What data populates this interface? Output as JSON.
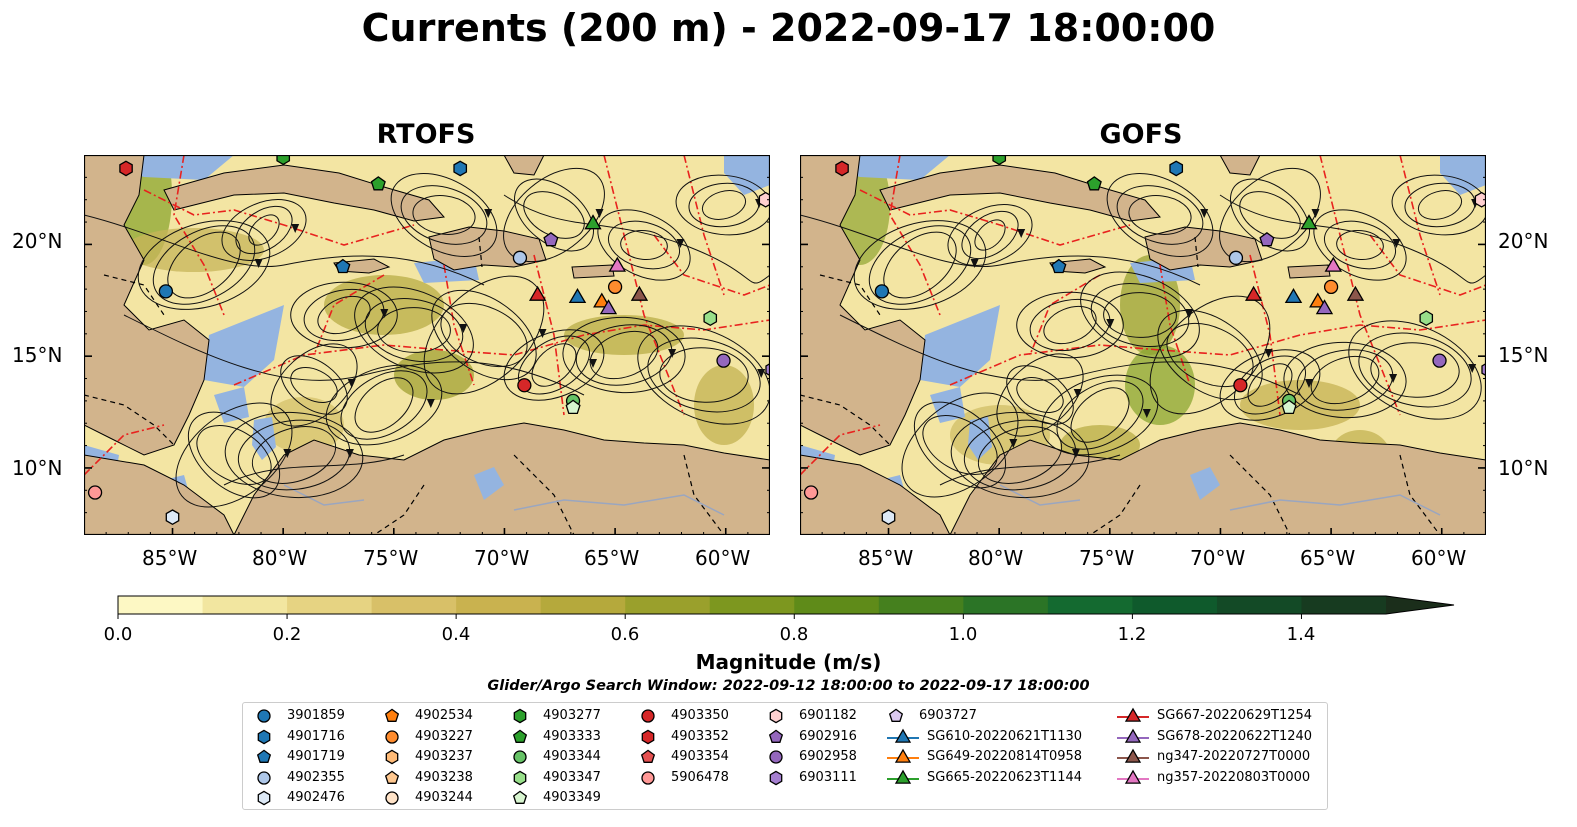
{
  "title": "Currents (200 m) - 2022-09-17 18:00:00",
  "panels": [
    {
      "title": "RTOFS"
    },
    {
      "title": "GOFS"
    }
  ],
  "lon_ticks": [
    "85°W",
    "80°W",
    "75°W",
    "70°W",
    "65°W",
    "60°W"
  ],
  "lat_ticks": [
    "20°N",
    "15°N",
    "10°N"
  ],
  "colorbar": {
    "label": "Magnitude (m/s)",
    "ticks": [
      "0.0",
      "0.2",
      "0.4",
      "0.6",
      "0.8",
      "1.0",
      "1.2",
      "1.4"
    ],
    "vmin": 0.0,
    "vmax": 1.5,
    "colors": [
      "#fdf8c4",
      "#f2e6a0",
      "#e6d382",
      "#d8c068",
      "#c9b24f",
      "#b5a93c",
      "#9aa02c",
      "#7d971f",
      "#5f8b19",
      "#45801e",
      "#2b7426",
      "#146a30",
      "#0f5a2c",
      "#134a26",
      "#173b20",
      "#1b2e1b"
    ]
  },
  "search_window": "Glider/Argo Search Window: 2022-09-12 18:00:00 to 2022-09-17 18:00:00",
  "colors": {
    "land": "#d2b48c",
    "water": "#94b4e0",
    "eez": "#e8221e"
  },
  "legend": [
    [
      {
        "label": "3901859",
        "marker": "circle",
        "color": "#1f77b4"
      },
      {
        "label": "4901716",
        "marker": "hexagon",
        "color": "#1f77b4"
      },
      {
        "label": "4901719",
        "marker": "pentagon",
        "color": "#1f77b4"
      },
      {
        "label": "4902355",
        "marker": "circle",
        "color": "#aec7e8"
      },
      {
        "label": "4902476",
        "marker": "hexagon",
        "color": "#dde9f6"
      }
    ],
    [
      {
        "label": "4902534",
        "marker": "pentagon",
        "color": "#ff7f0e"
      },
      {
        "label": "4903227",
        "marker": "circle",
        "color": "#ff8c2e"
      },
      {
        "label": "4903237",
        "marker": "hexagon",
        "color": "#ffbb78"
      },
      {
        "label": "4903238",
        "marker": "pentagon",
        "color": "#ffc890"
      },
      {
        "label": "4903244",
        "marker": "circle",
        "color": "#ffe3c8"
      }
    ],
    [
      {
        "label": "4903277",
        "marker": "hexagon",
        "color": "#2ca02c"
      },
      {
        "label": "4903333",
        "marker": "pentagon",
        "color": "#2ca02c"
      },
      {
        "label": "4903344",
        "marker": "circle",
        "color": "#66c266"
      },
      {
        "label": "4903347",
        "marker": "hexagon",
        "color": "#98df8a"
      },
      {
        "label": "4903349",
        "marker": "pentagon",
        "color": "#d8f5d0"
      }
    ],
    [
      {
        "label": "4903350",
        "marker": "circle",
        "color": "#d62728"
      },
      {
        "label": "4903352",
        "marker": "hexagon",
        "color": "#d62728"
      },
      {
        "label": "4903354",
        "marker": "pentagon",
        "color": "#e45050"
      },
      {
        "label": "5906478",
        "marker": "circle",
        "color": "#ff9896"
      }
    ],
    [
      {
        "label": "6901182",
        "marker": "hexagon",
        "color": "#ffd0d0"
      },
      {
        "label": "6902916",
        "marker": "pentagon",
        "color": "#9467bd"
      },
      {
        "label": "6902958",
        "marker": "circle",
        "color": "#9467bd"
      },
      {
        "label": "6903111",
        "marker": "hexagon",
        "color": "#a57fd0"
      }
    ],
    [
      {
        "label": "6903727",
        "marker": "pentagon",
        "color": "#dccaf0"
      },
      {
        "label": "SG610-20220621T1130",
        "marker": "triangle",
        "color": "#1f77b4"
      },
      {
        "label": "SG649-20220814T0958",
        "marker": "triangle",
        "color": "#ff7f0e"
      },
      {
        "label": "SG665-20220623T1144",
        "marker": "triangle",
        "color": "#2ca02c"
      }
    ],
    [
      {
        "label": "SG667-20220629T1254",
        "marker": "triangle",
        "color": "#d62728"
      },
      {
        "label": "SG678-20220622T1240",
        "marker": "triangle",
        "color": "#9467bd"
      },
      {
        "label": "ng347-20220727T0000",
        "marker": "triangle",
        "color": "#8c564b"
      },
      {
        "label": "ng357-20220803T0000",
        "marker": "triangle",
        "color": "#e377c2"
      }
    ]
  ],
  "floats": [
    {
      "label": "3901859",
      "lon": -85.3,
      "lat": 17.9
    },
    {
      "label": "4901716",
      "lon": -72.0,
      "lat": 23.4
    },
    {
      "label": "4901719",
      "lon": -77.3,
      "lat": 19.0
    },
    {
      "label": "4902355",
      "lon": -69.3,
      "lat": 19.4
    },
    {
      "label": "4902476",
      "lon": -85.0,
      "lat": 7.8
    },
    {
      "label": "4903227",
      "lon": -65.0,
      "lat": 18.1
    },
    {
      "label": "4903277",
      "lon": -80.0,
      "lat": 23.9
    },
    {
      "label": "4903333",
      "lon": -75.7,
      "lat": 22.7
    },
    {
      "label": "4903344",
      "lon": -66.9,
      "lat": 13.0
    },
    {
      "label": "4903347",
      "lon": -60.7,
      "lat": 16.7
    },
    {
      "label": "4903349",
      "lon": -66.9,
      "lat": 12.7
    },
    {
      "label": "4903350",
      "lon": -69.1,
      "lat": 13.7
    },
    {
      "label": "4903352",
      "lon": -87.1,
      "lat": 23.4
    },
    {
      "label": "5906478",
      "lon": -88.5,
      "lat": 8.9
    },
    {
      "label": "6901182",
      "lon": -58.2,
      "lat": 22.0
    },
    {
      "label": "6902916",
      "lon": -67.9,
      "lat": 20.2
    },
    {
      "label": "6902958",
      "lon": -60.1,
      "lat": 14.8
    },
    {
      "label": "6903111",
      "lon": -57.9,
      "lat": 14.4
    }
  ],
  "gliders": [
    {
      "label": "SG610-20220621T1130",
      "lon": -66.7,
      "lat": 17.6
    },
    {
      "label": "SG649-20220814T0958",
      "lon": -65.6,
      "lat": 17.4
    },
    {
      "label": "SG665-20220623T1144",
      "lon": -66.0,
      "lat": 20.9
    },
    {
      "label": "SG667-20220629T1254",
      "lon": -68.5,
      "lat": 17.7
    },
    {
      "label": "SG678-20220622T1240",
      "lon": -65.3,
      "lat": 17.1
    },
    {
      "label": "ng347-20220727T0000",
      "lon": -63.9,
      "lat": 17.7
    },
    {
      "label": "ng357-20220803T0000",
      "lon": -64.9,
      "lat": 19.0
    }
  ],
  "extent": {
    "lon": [
      -89,
      -58
    ],
    "lat": [
      7,
      24
    ]
  }
}
